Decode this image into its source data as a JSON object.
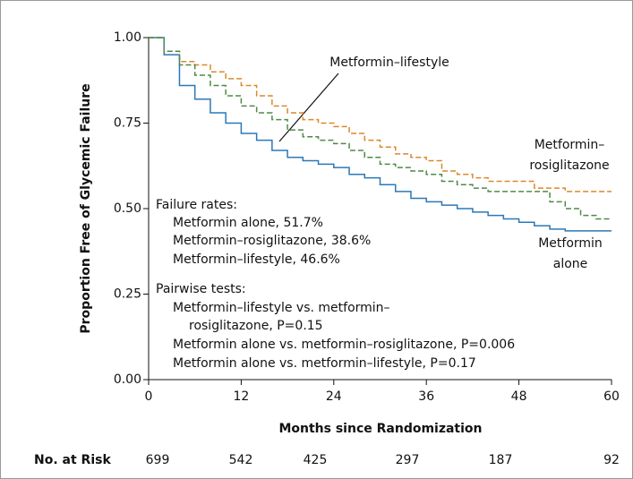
{
  "chart_data": {
    "type": "line",
    "step": true,
    "x_label": "Months since Randomization",
    "y_label": "Proportion Free of Glycemic Failure",
    "x": [
      0,
      2,
      4,
      6,
      8,
      10,
      12,
      14,
      16,
      18,
      20,
      22,
      24,
      26,
      28,
      30,
      32,
      34,
      36,
      38,
      40,
      42,
      44,
      46,
      48,
      50,
      52,
      54,
      56,
      58,
      60
    ],
    "xlim": [
      0,
      60
    ],
    "xticks": [
      0,
      12,
      24,
      36,
      48,
      60
    ],
    "ylim": [
      0,
      1
    ],
    "yticks": [
      {
        "value": 0,
        "label": "0.00"
      },
      {
        "value": 0.25,
        "label": "0.25"
      },
      {
        "value": 0.5,
        "label": "0.50"
      },
      {
        "value": 0.75,
        "label": "0.75"
      },
      {
        "value": 1,
        "label": "1.00"
      }
    ],
    "series": [
      {
        "label": [
          "Metformin",
          "alone"
        ],
        "color": "#2b78b8",
        "dashed": false,
        "values": [
          1.0,
          0.95,
          0.86,
          0.82,
          0.78,
          0.75,
          0.72,
          0.7,
          0.67,
          0.65,
          0.64,
          0.63,
          0.62,
          0.6,
          0.59,
          0.57,
          0.55,
          0.53,
          0.52,
          0.51,
          0.5,
          0.49,
          0.48,
          0.47,
          0.46,
          0.45,
          0.44,
          0.435,
          0.435,
          0.435,
          0.435
        ]
      },
      {
        "label": [
          "Metformin–",
          "rosiglitazone"
        ],
        "color": "#d9892b",
        "dashed": true,
        "values": [
          1.0,
          0.96,
          0.93,
          0.92,
          0.9,
          0.88,
          0.86,
          0.83,
          0.8,
          0.78,
          0.76,
          0.75,
          0.74,
          0.72,
          0.7,
          0.68,
          0.66,
          0.65,
          0.64,
          0.61,
          0.6,
          0.59,
          0.58,
          0.58,
          0.58,
          0.56,
          0.56,
          0.55,
          0.55,
          0.55,
          0.55
        ]
      },
      {
        "label": [
          "Metformin–lifestyle"
        ],
        "color": "#4f8a45",
        "dashed": true,
        "values": [
          1.0,
          0.96,
          0.92,
          0.89,
          0.86,
          0.83,
          0.8,
          0.78,
          0.76,
          0.73,
          0.71,
          0.7,
          0.69,
          0.67,
          0.65,
          0.63,
          0.62,
          0.61,
          0.6,
          0.58,
          0.57,
          0.56,
          0.55,
          0.55,
          0.55,
          0.55,
          0.52,
          0.5,
          0.48,
          0.47,
          0.47
        ]
      }
    ],
    "annotations": [
      "Failure rates:",
      "Metformin alone, 51.7%",
      "Metformin–rosiglitazone, 38.6%",
      "Metformin–lifestyle, 46.6%",
      "Pairwise tests:",
      "Metformin–lifestyle vs. metformin–",
      "rosiglitazone, P=0.15",
      "Metformin alone vs. metformin–rosiglitazone, P=0.006",
      "Metformin alone vs. metformin–lifestyle, P=0.17"
    ],
    "risk_table": {
      "label": "No. at Risk",
      "values": [
        699,
        542,
        425,
        297,
        187,
        92
      ]
    }
  }
}
